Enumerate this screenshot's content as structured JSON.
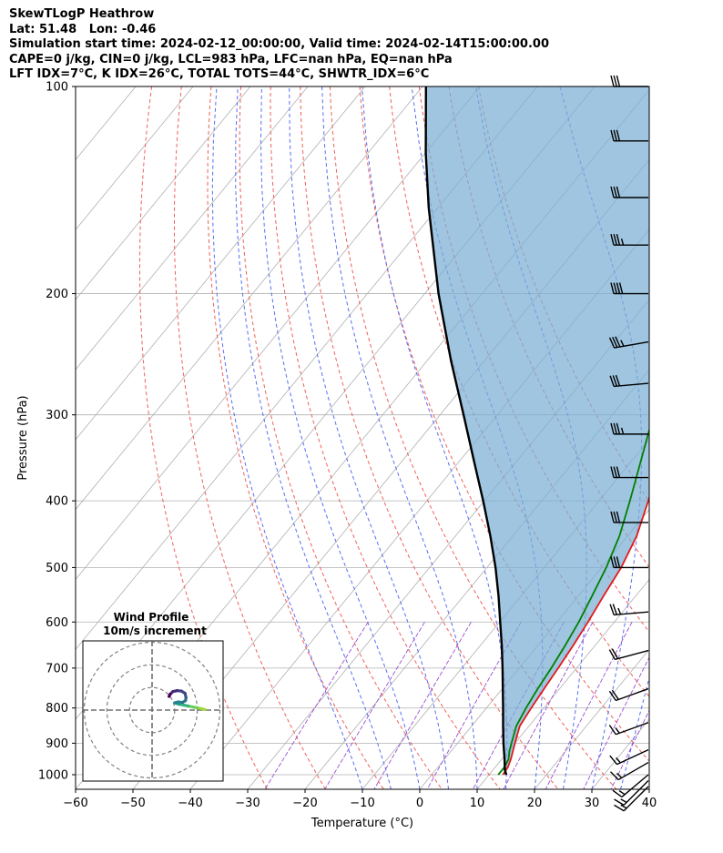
{
  "header": {
    "lines": [
      "SkewTLogP Heathrow",
      "Lat: 51.48   Lon: -0.46",
      "Simulation start time: 2024-02-12_00:00:00, Valid time: 2024-02-14T15:00:00.00",
      "CAPE=0 j/kg, CIN=0 j/kg, LCL=983 hPa, LFC=nan hPa, EQ=nan hPa",
      "LFT IDX=7°C, K IDX=26°C, TOTAL TOTS=44°C, SHWTR_IDX=6°C"
    ]
  },
  "chart_data": {
    "type": "line",
    "subtype": "skew-t log-p",
    "xlabel": "Temperature (°C)",
    "ylabel": "Pressure (hPa)",
    "x_ticks": [
      -60,
      -50,
      -40,
      -30,
      -20,
      -10,
      0,
      10,
      20,
      30,
      40
    ],
    "x_tick_labels": [
      "−60",
      "−50",
      "−40",
      "−30",
      "−20",
      "−10",
      "0",
      "10",
      "20",
      "30",
      "40"
    ],
    "y_ticks": [
      100,
      200,
      300,
      400,
      500,
      600,
      700,
      800,
      900,
      1000
    ],
    "y_scale": "log",
    "xlim": [
      -60,
      40
    ],
    "ylim": [
      1050,
      100
    ],
    "grid": true,
    "isotherm_temps": [
      -150,
      -140,
      -130,
      -120,
      -110,
      -100,
      -90,
      -80,
      -70,
      -60,
      -50,
      -40,
      -30,
      -20,
      -10,
      0,
      10,
      20,
      30,
      40
    ],
    "dry_adiabat_thetas": [
      -30,
      -20,
      -10,
      0,
      10,
      20,
      30,
      40,
      50,
      60,
      70,
      80
    ],
    "moist_adiabat_starts": [
      -10,
      -5,
      0,
      5,
      10,
      15,
      20,
      25,
      30,
      35
    ],
    "mixing_ratios": [
      0.0004,
      0.001,
      0.002,
      0.004,
      0.007,
      0.01,
      0.016,
      0.024,
      0.032
    ],
    "series": [
      {
        "name": "Temperature",
        "color": "#e31a1c",
        "points": [
          [
            1000,
            12.4
          ],
          [
            975,
            12.2
          ],
          [
            950,
            11.6
          ],
          [
            925,
            10.8
          ],
          [
            900,
            10.0
          ],
          [
            875,
            9.2
          ],
          [
            850,
            8.4
          ],
          [
            800,
            7.8
          ],
          [
            750,
            7.3
          ],
          [
            700,
            6.8
          ],
          [
            650,
            6.2
          ],
          [
            600,
            5.4
          ],
          [
            550,
            4.4
          ],
          [
            500,
            3.4
          ],
          [
            450,
            1.6
          ],
          [
            400,
            -1.4
          ],
          [
            350,
            -5.0
          ],
          [
            300,
            -9.4
          ],
          [
            250,
            -14.8
          ],
          [
            225,
            -17.8
          ],
          [
            215,
            -19.6
          ],
          [
            205,
            -20.2
          ],
          [
            200,
            -17.8
          ],
          [
            185,
            -12.8
          ],
          [
            175,
            -9.0
          ],
          [
            165,
            -5.6
          ],
          [
            150,
            -2.2
          ],
          [
            140,
            0.2
          ],
          [
            125,
            3.8
          ],
          [
            110,
            7.6
          ],
          [
            100,
            9.8
          ]
        ]
      },
      {
        "name": "Dewpoint",
        "color": "#008000",
        "points": [
          [
            1000,
            11.6
          ],
          [
            975,
            11.6
          ],
          [
            950,
            11.2
          ],
          [
            925,
            10.2
          ],
          [
            900,
            9.4
          ],
          [
            875,
            8.6
          ],
          [
            850,
            7.8
          ],
          [
            800,
            6.9
          ],
          [
            750,
            6.2
          ],
          [
            700,
            5.6
          ],
          [
            650,
            4.8
          ],
          [
            600,
            3.8
          ],
          [
            550,
            2.4
          ],
          [
            500,
            0.8
          ],
          [
            450,
            -1.4
          ],
          [
            400,
            -4.6
          ],
          [
            350,
            -8.4
          ],
          [
            300,
            -12.8
          ],
          [
            250,
            -18.0
          ],
          [
            225,
            -20.8
          ],
          [
            210,
            -23.4
          ],
          [
            200,
            -22.4
          ],
          [
            185,
            -20.8
          ],
          [
            175,
            -21.2
          ],
          [
            160,
            -27.4
          ],
          [
            150,
            -28.6
          ],
          [
            140,
            -27.0
          ],
          [
            125,
            -25.0
          ],
          [
            110,
            -23.8
          ],
          [
            100,
            -22.4
          ]
        ]
      },
      {
        "name": "Parcel",
        "color": "#000000",
        "points": [
          [
            1000,
            13.0
          ],
          [
            983,
            12.0
          ],
          [
            950,
            10.5
          ],
          [
            900,
            8.0
          ],
          [
            850,
            5.5
          ],
          [
            800,
            2.9
          ],
          [
            750,
            0.1
          ],
          [
            700,
            -2.9
          ],
          [
            650,
            -6.2
          ],
          [
            600,
            -9.9
          ],
          [
            550,
            -13.9
          ],
          [
            500,
            -18.5
          ],
          [
            450,
            -23.9
          ],
          [
            400,
            -30.2
          ],
          [
            350,
            -37.5
          ],
          [
            300,
            -45.9
          ],
          [
            250,
            -55.9
          ],
          [
            200,
            -67.6
          ],
          [
            150,
            -81.6
          ],
          [
            125,
            -89.9
          ],
          [
            100,
            -99.4
          ]
        ]
      }
    ],
    "wind_barbs": [
      {
        "p": 100,
        "speed_kt": 30,
        "dir_deg": 270
      },
      {
        "p": 120,
        "speed_kt": 30,
        "dir_deg": 270
      },
      {
        "p": 145,
        "speed_kt": 30,
        "dir_deg": 270
      },
      {
        "p": 170,
        "speed_kt": 35,
        "dir_deg": 270
      },
      {
        "p": 200,
        "speed_kt": 40,
        "dir_deg": 270
      },
      {
        "p": 235,
        "speed_kt": 35,
        "dir_deg": 260
      },
      {
        "p": 270,
        "speed_kt": 30,
        "dir_deg": 265
      },
      {
        "p": 320,
        "speed_kt": 35,
        "dir_deg": 270
      },
      {
        "p": 370,
        "speed_kt": 30,
        "dir_deg": 270
      },
      {
        "p": 430,
        "speed_kt": 30,
        "dir_deg": 270
      },
      {
        "p": 500,
        "speed_kt": 30,
        "dir_deg": 270
      },
      {
        "p": 580,
        "speed_kt": 25,
        "dir_deg": 265
      },
      {
        "p": 660,
        "speed_kt": 20,
        "dir_deg": 255
      },
      {
        "p": 750,
        "speed_kt": 20,
        "dir_deg": 250
      },
      {
        "p": 840,
        "speed_kt": 15,
        "dir_deg": 250
      },
      {
        "p": 920,
        "speed_kt": 15,
        "dir_deg": 245
      },
      {
        "p": 960,
        "speed_kt": 15,
        "dir_deg": 240
      },
      {
        "p": 1000,
        "speed_kt": 15,
        "dir_deg": 230
      },
      {
        "p": 1020,
        "speed_kt": 15,
        "dir_deg": 225
      },
      {
        "p": 1040,
        "speed_kt": 15,
        "dir_deg": 225
      }
    ],
    "inset": {
      "title_line1": "Wind Profile",
      "title_line2": "10m/s increment",
      "type": "hodograph",
      "ring_radii_ms": [
        10,
        20,
        30
      ],
      "range_ms": 31,
      "points": [
        [
          23.5,
          0.2
        ],
        [
          22.0,
          0.6
        ],
        [
          20.0,
          1.0
        ],
        [
          18.0,
          1.4
        ],
        [
          16.0,
          1.8
        ],
        [
          14.0,
          2.2
        ],
        [
          12.0,
          2.6
        ],
        [
          10.0,
          3.2
        ],
        [
          11.5,
          3.6
        ],
        [
          13.5,
          3.4
        ],
        [
          14.8,
          4.2
        ],
        [
          15.0,
          5.5
        ],
        [
          14.6,
          7.4
        ],
        [
          13.0,
          8.4
        ],
        [
          11.0,
          8.6
        ],
        [
          9.2,
          8.2
        ],
        [
          8.0,
          7.0
        ],
        [
          7.5,
          6.0
        ]
      ],
      "colors": [
        "#a0d93a",
        "#6ccd5a",
        "#2fb47c",
        "#1f9e89",
        "#25858e",
        "#2d708e",
        "#38588c",
        "#414487",
        "#482878",
        "#440154"
      ]
    }
  }
}
